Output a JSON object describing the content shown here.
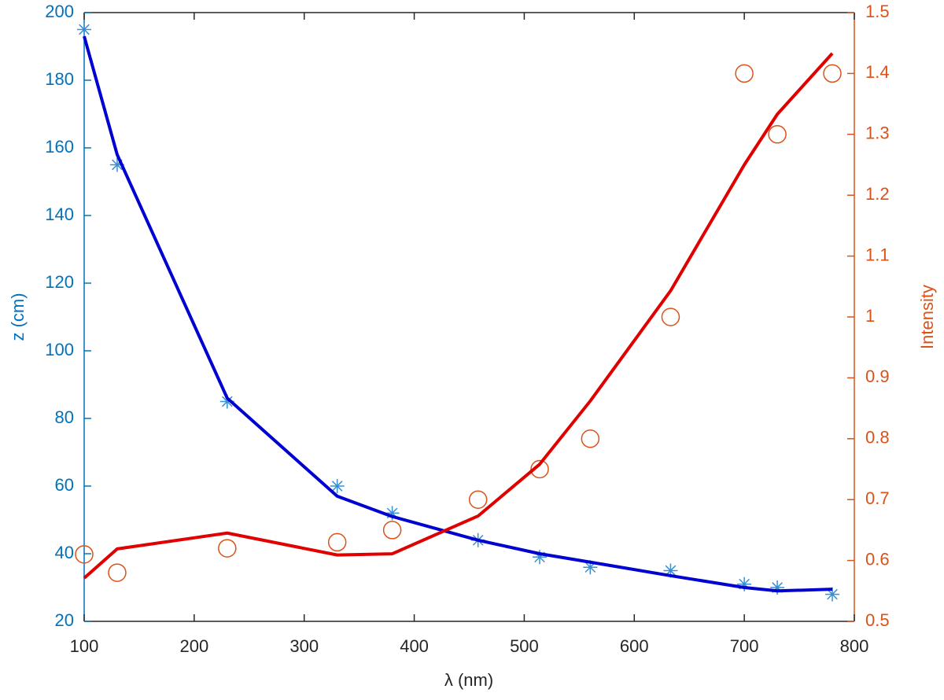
{
  "chart_data": {
    "type": "line",
    "xlabel": "λ (nm)",
    "ylabel": "z (cm)",
    "y2label": "Intensity",
    "x": [
      100,
      130,
      230,
      330,
      380,
      458,
      514,
      560,
      633,
      700,
      730,
      780
    ],
    "series": [
      {
        "color": "#3a8fd0",
        "mode": "markers",
        "marker": "star",
        "axis": "y",
        "values": [
          195,
          155,
          85,
          60,
          52,
          44,
          39,
          36,
          35,
          31,
          30,
          28
        ]
      },
      {
        "color": "#0000d0",
        "mode": "line",
        "axis": "y",
        "values": [
          193,
          158,
          86,
          57,
          51,
          44,
          40,
          37.5,
          33.5,
          30,
          29,
          29.5
        ]
      },
      {
        "color": "#d95319",
        "mode": "markers",
        "marker": "circle",
        "axis": "y2",
        "values": [
          0.61,
          0.58,
          0.62,
          0.63,
          0.65,
          0.7,
          0.75,
          0.8,
          1.0,
          1.4,
          1.3,
          1.4
        ]
      },
      {
        "color": "#e00000",
        "mode": "line",
        "axis": "y2",
        "values": [
          0.571,
          0.619,
          0.645,
          0.609,
          0.611,
          0.673,
          0.758,
          0.862,
          1.043,
          1.25,
          1.333,
          1.433
        ]
      }
    ],
    "xlim": [
      100,
      800
    ],
    "xticks": [
      100,
      200,
      300,
      400,
      500,
      600,
      700,
      800
    ],
    "ylim": [
      20,
      200
    ],
    "yticks": [
      20,
      40,
      60,
      80,
      100,
      120,
      140,
      160,
      180,
      200
    ],
    "ycolor": "#0072bd",
    "y2lim": [
      0.5,
      1.5
    ],
    "y2ticks": [
      0.5,
      0.6,
      0.7,
      0.8,
      0.9,
      1,
      1.1,
      1.2,
      1.3,
      1.4,
      1.5
    ],
    "y2color": "#d95319",
    "grid": false
  }
}
